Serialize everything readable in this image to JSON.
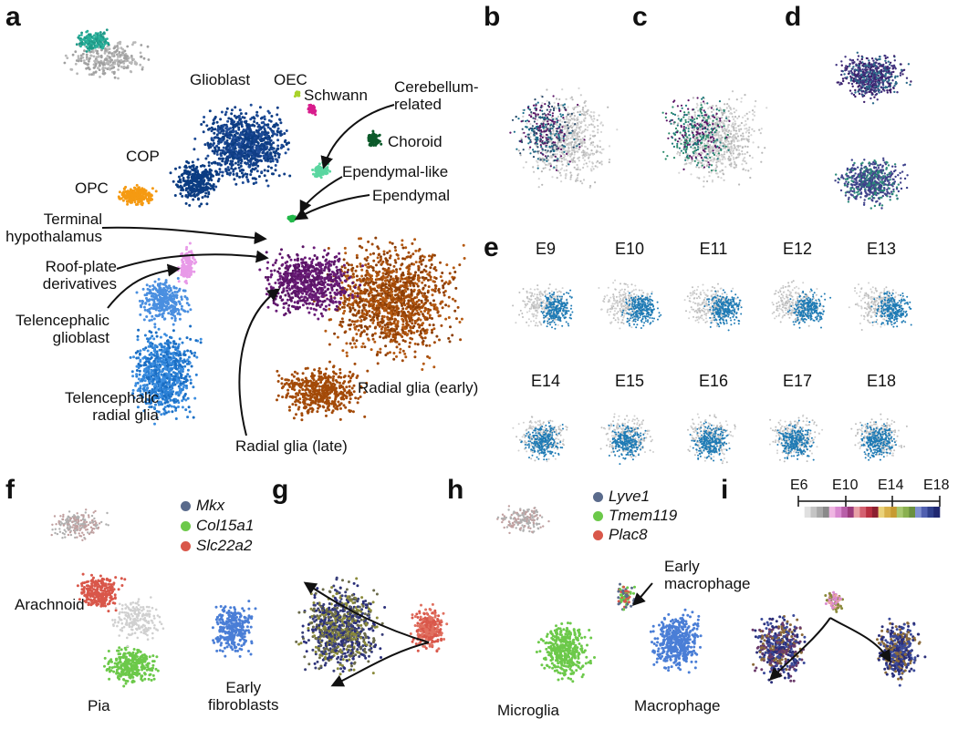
{
  "panels": {
    "a": "a",
    "b": "b",
    "c": "c",
    "d": "d",
    "e": "e",
    "f": "f",
    "g": "g",
    "h": "h",
    "i": "i"
  },
  "panel_a": {
    "glioblast": "Glioblast",
    "oec": "OEC",
    "schwann": "Schwann",
    "cerebellum": "Cerebellum-\nrelated",
    "choroid": "Choroid",
    "cop": "COP",
    "opc": "OPC",
    "ependymal_like": "Ependymal-like",
    "ependymal": "Ependymal",
    "terminal_hypothalamus": "Terminal\nhypothalamus",
    "roof_plate": "Roof-plate\nderivatives",
    "telencephalic_glioblast": "Telencephalic\nglioblast",
    "telencephalic_radial_glia": "Telencephalic\nradial glia",
    "radial_glia_early": "Radial glia (early)",
    "radial_glia_late": "Radial glia (late)"
  },
  "panel_e": {
    "timepoints": [
      "E9",
      "E10",
      "E11",
      "E12",
      "E13",
      "E14",
      "E15",
      "E16",
      "E17",
      "E18"
    ]
  },
  "panel_f": {
    "legend": [
      {
        "label": "Mkx",
        "color": "#5a6b8c"
      },
      {
        "label": "Col15a1",
        "color": "#6cc94a"
      },
      {
        "label": "Slc22a2",
        "color": "#d9574a"
      }
    ],
    "arachnoid": "Arachnoid",
    "pia": "Pia",
    "early_fibroblasts": "Early\nfibroblasts"
  },
  "panel_h": {
    "legend": [
      {
        "label": "Lyve1",
        "color": "#5a6b8c"
      },
      {
        "label": "Tmem119",
        "color": "#6cc94a"
      },
      {
        "label": "Plac8",
        "color": "#d9574a"
      }
    ],
    "early_macrophage": "Early\nmacrophage",
    "microglia": "Microglia",
    "macrophage": "Macrophage"
  },
  "panel_i": {
    "ticks": [
      "E6",
      "E10",
      "E14",
      "E18"
    ],
    "scale_colors": [
      "#ffffff",
      "#e0e0e0",
      "#c4c4c4",
      "#a8a8a8",
      "#8a8a8a",
      "#efb6e2",
      "#d98ad0",
      "#b85fa8",
      "#9b3b7c",
      "#e8a0a6",
      "#d46070",
      "#b83040",
      "#8c2030",
      "#ead27a",
      "#d8b04a",
      "#c79a32",
      "#a8c870",
      "#8ab050",
      "#6a9040",
      "#8090d0",
      "#5060b0",
      "#30408c",
      "#202870"
    ]
  },
  "colors": {
    "glioblast": "#0b3c82",
    "radial_early": "#a34a08",
    "radial_late": "#5a1466",
    "tel_radial": "#2a7fd4",
    "tel_glioblast": "#4a8fe0",
    "opc": "#f59a12",
    "roof": "#e89ae8",
    "choroid": "#0c5a2a",
    "cerebellum": "#5ad6a0",
    "schwann": "#d81c8c",
    "oec": "#a8d22a",
    "ependymal": "#22b84a",
    "e_highlight": "#1f7bb5",
    "grey": "#c8c8c8"
  }
}
